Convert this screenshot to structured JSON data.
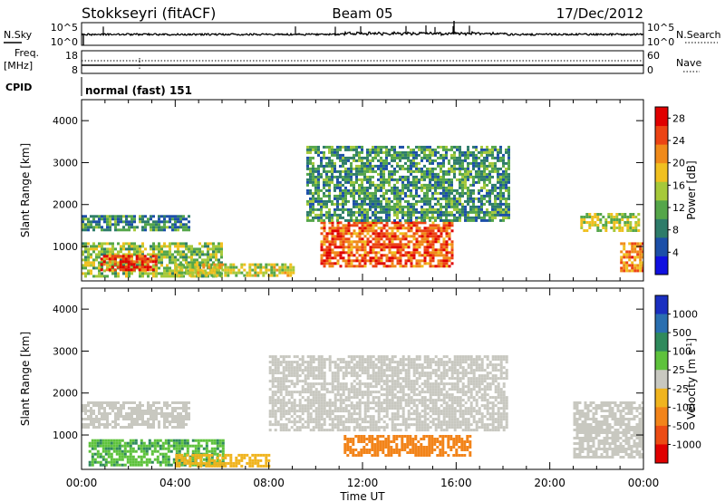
{
  "header": {
    "station": "Stokkseyri (fitACF)",
    "beam": "Beam 05",
    "date": "17/Dec/2012"
  },
  "top_panels": {
    "nsky_label": "N.Sky",
    "nsky_ticks": [
      "10^5",
      "10^0"
    ],
    "nsearch_label": "N.Search",
    "nsearch_ticks": [
      "10^5",
      "10^0"
    ],
    "freq_label": "Freq.",
    "freq_unit": "[MHz]",
    "freq_ticks": [
      "18",
      "8"
    ],
    "nave_label": "Nave",
    "nave_ticks": [
      "60",
      "0"
    ],
    "cpid_label": "CPID",
    "cpid_value": "normal (fast) 151"
  },
  "colors": {
    "power_scale": [
      "#1010e0",
      "#1c4fa8",
      "#2e7c6a",
      "#55a64a",
      "#a6c93a",
      "#f0c020",
      "#f08a1a",
      "#ec4414",
      "#e00000"
    ],
    "velocity_scale": [
      "#1a2fc0",
      "#2a6fb0",
      "#2f8a5c",
      "#5ec23c",
      "#c8c8c0",
      "#f0b41e",
      "#f2841a",
      "#ec4c14",
      "#e00000"
    ]
  },
  "chart_data": [
    {
      "type": "heatmap",
      "title": "",
      "xlabel": "Time UT",
      "ylabel": "Slant Range [km]",
      "x_ticks": [
        "00:00",
        "04:00",
        "08:00",
        "12:00",
        "16:00",
        "20:00",
        "00:00"
      ],
      "y_ticks": [
        "1000",
        "2000",
        "3000",
        "4000"
      ],
      "xlim_hours": [
        0,
        24
      ],
      "ylim_km": [
        180,
        4500
      ],
      "colorbar_label": "Power [dB]",
      "colorbar_ticks": [
        "4",
        "8",
        "12",
        "16",
        "20",
        "24",
        "28"
      ],
      "colorbar_range": [
        0,
        30
      ],
      "regions": [
        {
          "name": "early-near-range-echoes",
          "t0": 0.0,
          "t1": 6.0,
          "r0": 300,
          "r1": 1100,
          "value": 14
        },
        {
          "name": "early-strong-core",
          "t0": 0.8,
          "t1": 3.2,
          "r0": 450,
          "r1": 800,
          "value": 27
        },
        {
          "name": "early-mid-range-band",
          "t0": 0.0,
          "t1": 4.6,
          "r0": 1400,
          "r1": 1750,
          "value": 9
        },
        {
          "name": "morning-low-band",
          "t0": 4.0,
          "t1": 9.0,
          "r0": 300,
          "r1": 600,
          "value": 16
        },
        {
          "name": "daytime-descending-arc",
          "t0": 10.2,
          "t1": 15.8,
          "r0": 500,
          "r1": 1600,
          "value": 24
        },
        {
          "name": "daytime-upper-scatter",
          "t0": 9.6,
          "t1": 18.2,
          "r0": 1600,
          "r1": 3400,
          "value": 10
        },
        {
          "name": "evening-far-range",
          "t0": 21.3,
          "t1": 23.8,
          "r0": 1400,
          "r1": 1800,
          "value": 15
        },
        {
          "name": "late-near-range",
          "t0": 23.0,
          "t1": 24.0,
          "r0": 400,
          "r1": 1100,
          "value": 22
        }
      ]
    },
    {
      "type": "heatmap",
      "title": "",
      "xlabel": "Time UT",
      "ylabel": "Slant Range [km]",
      "x_ticks": [
        "00:00",
        "04:00",
        "08:00",
        "12:00",
        "16:00",
        "20:00",
        "00:00"
      ],
      "y_ticks": [
        "1000",
        "2000",
        "3000",
        "4000"
      ],
      "xlim_hours": [
        0,
        24
      ],
      "ylim_km": [
        180,
        4500
      ],
      "colorbar_label": "Velocity [m s",
      "colorbar_label_sup": "-1",
      "colorbar_label_end": "]",
      "colorbar_ticks": [
        "1000",
        "500",
        "100",
        "25",
        "-25",
        "-100",
        "-500",
        "-1000"
      ],
      "regions": [
        {
          "name": "early-ground-scatter",
          "t0": 0.0,
          "t1": 4.6,
          "r0": 1200,
          "r1": 1800,
          "value": 0
        },
        {
          "name": "early-positive-echoes",
          "t0": 0.3,
          "t1": 6.0,
          "r0": 300,
          "r1": 900,
          "value": 80
        },
        {
          "name": "morning-negative-band",
          "t0": 4.0,
          "t1": 8.0,
          "r0": 250,
          "r1": 550,
          "value": -60
        },
        {
          "name": "daytime-ground-scatter",
          "t0": 8.0,
          "t1": 18.2,
          "r0": 1100,
          "r1": 2900,
          "value": 0
        },
        {
          "name": "daytime-negative-arc",
          "t0": 11.2,
          "t1": 16.6,
          "r0": 500,
          "r1": 1000,
          "value": -300
        },
        {
          "name": "evening-ground-scatter",
          "t0": 21.0,
          "t1": 24.0,
          "r0": 500,
          "r1": 1800,
          "value": 0
        }
      ]
    }
  ]
}
